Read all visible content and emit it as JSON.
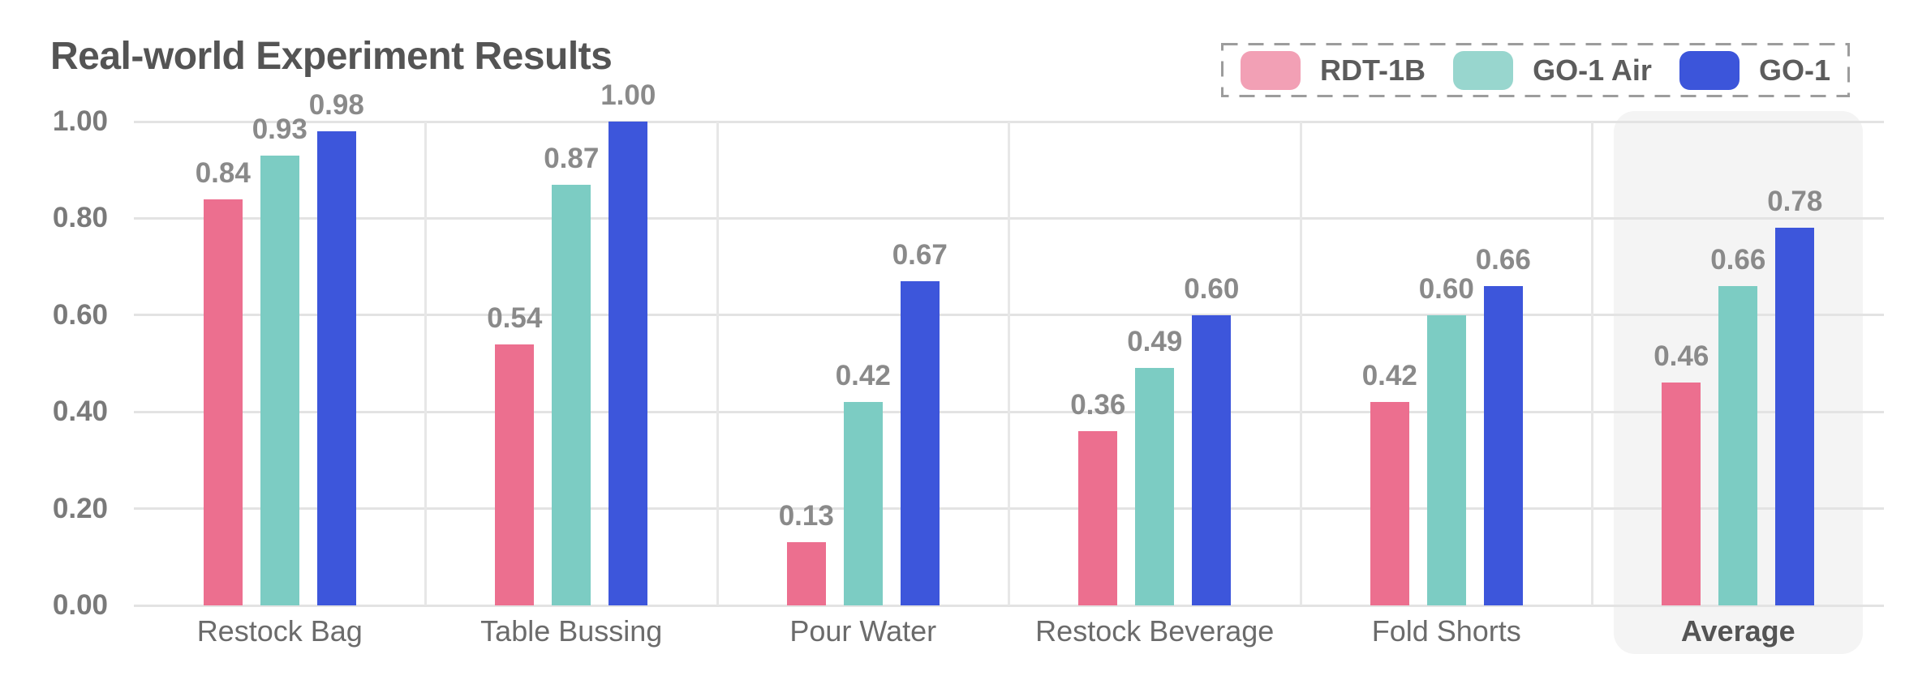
{
  "title": "Real-world Experiment Results",
  "colors": {
    "rdt_1b_bar": "#ec6f8f",
    "go_1_air_bar": "#7cccc3",
    "go_1_bar": "#3d56db",
    "rdt_1b_legend": "#f2a0b5",
    "go_1_air_legend": "#98d6ce",
    "go_1_legend": "#3c55da",
    "gridline": "#e3e3e3",
    "highlight_background": "#f4f4f4",
    "legend_border": "#9c9c9c"
  },
  "legend": {
    "entries": [
      "RDT-1B",
      "GO-1 Air",
      "GO-1"
    ]
  },
  "chart_data": {
    "type": "bar",
    "title": "Real-world Experiment Results",
    "categories": [
      "Restock Bag",
      "Table Bussing",
      "Pour Water",
      "Restock Beverage",
      "Fold Shorts",
      "Average"
    ],
    "series": [
      {
        "name": "RDT-1B",
        "color": "#ec6f8f",
        "legend_color": "#f2a0b5",
        "values": [
          0.84,
          0.54,
          0.13,
          0.36,
          0.42,
          0.46
        ]
      },
      {
        "name": "GO-1 Air",
        "color": "#7cccc3",
        "legend_color": "#98d6ce",
        "values": [
          0.93,
          0.87,
          0.42,
          0.49,
          0.6,
          0.66
        ]
      },
      {
        "name": "GO-1",
        "color": "#3d56db",
        "legend_color": "#3c55da",
        "values": [
          0.98,
          1.0,
          0.67,
          0.6,
          0.66,
          0.78
        ]
      }
    ],
    "value_label_format": "0.00",
    "ylim": [
      0,
      1.0
    ],
    "yticks": [
      "0.00",
      "0.20",
      "0.40",
      "0.60",
      "0.80",
      "1.00"
    ],
    "grid": true,
    "legend_position": "top-right",
    "highlight_category": "Average",
    "xlabel": "",
    "ylabel": ""
  }
}
